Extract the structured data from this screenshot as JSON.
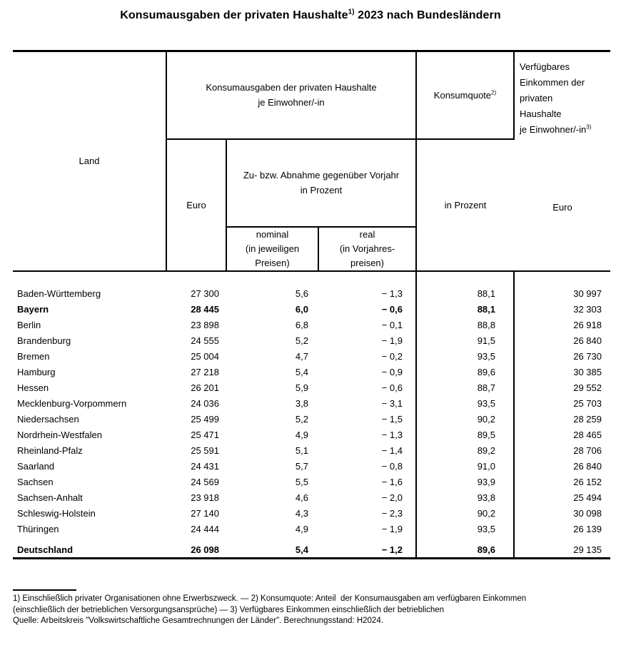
{
  "title": {
    "main": "Konsumausgaben der privaten Haushalte",
    "sup": "1)",
    "suffix": " 2023 nach Bundesländern"
  },
  "header": {
    "land": "Land",
    "group_konsum": [
      "Konsumausgaben der privaten Haushalte",
      "je Einwohner/-in"
    ],
    "konsumquote": "Konsumquote",
    "konsumquote_sup": "2)",
    "verfuegbares_lines": [
      "Verfügbares",
      "Einkommen der",
      "privaten",
      "Haushalte"
    ],
    "verfuegbares_last": "je Einwohner/-in",
    "verfuegbares_sup": "3)",
    "euro": "Euro",
    "zu_abnahme": [
      "Zu- bzw. Abnahme gegenüber Vorjahr",
      "in Prozent"
    ],
    "in_prozent": "in Prozent",
    "euro2": "Euro",
    "nominal": [
      "nominal",
      "(in jeweiligen",
      "Preisen)"
    ],
    "real": [
      "real",
      "(in Vorjahres-",
      "preisen)"
    ]
  },
  "table": {
    "rows": [
      {
        "land": "Baden-Württemberg",
        "euro": "27 300",
        "nominal": "5,6",
        "real": "− 1,3",
        "quote": "88,1",
        "einkommen": "30 997",
        "bold": false
      },
      {
        "land": "Bayern",
        "euro": "28 445",
        "nominal": "6,0",
        "real": "− 0,6",
        "quote": "88,1",
        "einkommen": "32 303",
        "bold": true
      },
      {
        "land": "Berlin",
        "euro": "23 898",
        "nominal": "6,8",
        "real": "− 0,1",
        "quote": "88,8",
        "einkommen": "26 918",
        "bold": false
      },
      {
        "land": "Brandenburg",
        "euro": "24 555",
        "nominal": "5,2",
        "real": "− 1,9",
        "quote": "91,5",
        "einkommen": "26 840",
        "bold": false
      },
      {
        "land": "Bremen",
        "euro": "25 004",
        "nominal": "4,7",
        "real": "− 0,2",
        "quote": "93,5",
        "einkommen": "26 730",
        "bold": false
      },
      {
        "land": "Hamburg",
        "euro": "27 218",
        "nominal": "5,4",
        "real": "− 0,9",
        "quote": "89,6",
        "einkommen": "30 385",
        "bold": false
      },
      {
        "land": "Hessen",
        "euro": "26 201",
        "nominal": "5,9",
        "real": "− 0,6",
        "quote": "88,7",
        "einkommen": "29 552",
        "bold": false
      },
      {
        "land": "Mecklenburg-Vorpommern",
        "euro": "24 036",
        "nominal": "3,8",
        "real": "− 3,1",
        "quote": "93,5",
        "einkommen": "25 703",
        "bold": false
      },
      {
        "land": "Niedersachsen",
        "euro": "25 499",
        "nominal": "5,2",
        "real": "− 1,5",
        "quote": "90,2",
        "einkommen": "28 259",
        "bold": false
      },
      {
        "land": "Nordrhein-Westfalen",
        "euro": "25 471",
        "nominal": "4,9",
        "real": "− 1,3",
        "quote": "89,5",
        "einkommen": "28 465",
        "bold": false
      },
      {
        "land": "Rheinland-Pfalz",
        "euro": "25 591",
        "nominal": "5,1",
        "real": "− 1,4",
        "quote": "89,2",
        "einkommen": "28 706",
        "bold": false
      },
      {
        "land": "Saarland",
        "euro": "24 431",
        "nominal": "5,7",
        "real": "− 0,8",
        "quote": "91,0",
        "einkommen": "26 840",
        "bold": false
      },
      {
        "land": "Sachsen",
        "euro": "24 569",
        "nominal": "5,5",
        "real": "− 1,6",
        "quote": "93,9",
        "einkommen": "26 152",
        "bold": false
      },
      {
        "land": "Sachsen-Anhalt",
        "euro": "23 918",
        "nominal": "4,6",
        "real": "− 2,0",
        "quote": "93,8",
        "einkommen": "25 494",
        "bold": false
      },
      {
        "land": "Schleswig-Holstein",
        "euro": "27 140",
        "nominal": "4,3",
        "real": "− 2,3",
        "quote": "90,2",
        "einkommen": "30 098",
        "bold": false
      },
      {
        "land": "Thüringen",
        "euro": "24 444",
        "nominal": "4,9",
        "real": "− 1,9",
        "quote": "93,5",
        "einkommen": "26 139",
        "bold": false
      }
    ],
    "total_row": {
      "land": "Deutschland",
      "euro": "26 098",
      "nominal": "5,4",
      "real": "− 1,2",
      "quote": "89,6",
      "einkommen": "29 135",
      "bold": true
    }
  },
  "footnotes": [
    "1) Einschließlich privater Organisationen ohne Erwerbszweck. — 2) Konsumquote: Anteil  der Konsumausgaben am verfügbaren Einkommen",
    "(einschließlich der betrieblichen Versorgungsansprüche) — 3) Verfügbares Einkommen einschließlich der betrieblichen",
    "Quelle: Arbeitskreis \"Volkswirtschaftliche Gesamtrechnungen der Länder\". Berechnungsstand: H2024."
  ]
}
